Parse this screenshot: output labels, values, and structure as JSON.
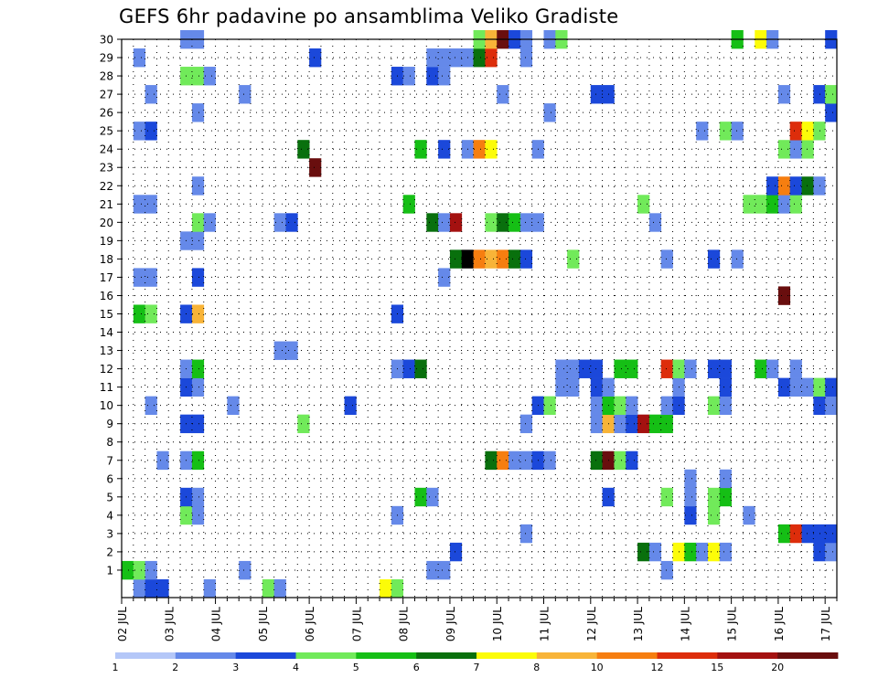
{
  "chart_data": {
    "type": "heatmap",
    "title": "GEFS 6hr padavine po ansamblima Veliko Gradiste",
    "x_tick_labels": [
      "02 JUL",
      "03 JUL",
      "04 JUL",
      "05 JUL",
      "06 JUL",
      "07 JUL",
      "08 JUL",
      "09 JUL",
      "10 JUL",
      "11 JUL",
      "12 JUL",
      "13 JUL",
      "14 JUL",
      "15 JUL",
      "16 JUL",
      "17 JUL"
    ],
    "y_tick_labels": [
      "1",
      "2",
      "3",
      "4",
      "5",
      "6",
      "7",
      "8",
      "9",
      "10",
      "11",
      "12",
      "13",
      "14",
      "15",
      "16",
      "17",
      "18",
      "19",
      "20",
      "21",
      "22",
      "23",
      "24",
      "25",
      "26",
      "27",
      "28",
      "29",
      "30"
    ],
    "ylim": [
      0,
      30
    ],
    "time_steps": 61,
    "grid": true,
    "legend_placement": "bottom",
    "legend": {
      "labels": [
        "1",
        "2",
        "3",
        "4",
        "5",
        "6",
        "7",
        "8",
        "10",
        "12",
        "15",
        "20"
      ],
      "colors": [
        "#b4c7f8",
        "#6589e9",
        "#1b48da",
        "#71ea5a",
        "#15bf15",
        "#09700d",
        "#fcfc08",
        "#f8b438",
        "#f67e10",
        "#dd2d0b",
        "#a41110",
        "#690e0e"
      ]
    },
    "cells": [
      [
        1,
        0,
        1
      ],
      [
        2,
        0,
        2
      ],
      [
        3,
        0,
        2
      ],
      [
        7,
        0,
        1
      ],
      [
        12,
        0,
        3
      ],
      [
        13,
        0,
        1
      ],
      [
        22,
        0,
        6
      ],
      [
        23,
        0,
        3
      ],
      [
        0,
        1,
        4
      ],
      [
        1,
        1,
        3
      ],
      [
        2,
        1,
        1
      ],
      [
        10,
        1,
        1
      ],
      [
        26,
        1,
        1
      ],
      [
        27,
        1,
        1
      ],
      [
        46,
        1,
        1
      ],
      [
        28,
        2,
        2
      ],
      [
        44,
        2,
        5
      ],
      [
        45,
        2,
        1
      ],
      [
        47,
        2,
        6
      ],
      [
        48,
        2,
        4
      ],
      [
        49,
        2,
        1
      ],
      [
        50,
        2,
        6
      ],
      [
        51,
        2,
        1
      ],
      [
        59,
        2,
        2
      ],
      [
        60,
        2,
        1
      ],
      [
        34,
        3,
        1
      ],
      [
        56,
        3,
        4
      ],
      [
        57,
        3,
        9
      ],
      [
        58,
        3,
        2
      ],
      [
        59,
        3,
        2
      ],
      [
        60,
        3,
        2
      ],
      [
        5,
        4,
        3
      ],
      [
        6,
        4,
        1
      ],
      [
        23,
        4,
        1
      ],
      [
        48,
        4,
        2
      ],
      [
        50,
        4,
        3
      ],
      [
        53,
        4,
        1
      ],
      [
        5,
        5,
        2
      ],
      [
        6,
        5,
        1
      ],
      [
        25,
        5,
        4
      ],
      [
        26,
        5,
        1
      ],
      [
        41,
        5,
        2
      ],
      [
        46,
        5,
        3
      ],
      [
        48,
        5,
        1
      ],
      [
        50,
        5,
        3
      ],
      [
        51,
        5,
        4
      ],
      [
        48,
        6,
        1
      ],
      [
        51,
        6,
        1
      ],
      [
        3,
        7,
        1
      ],
      [
        5,
        7,
        1
      ],
      [
        6,
        7,
        4
      ],
      [
        31,
        7,
        5
      ],
      [
        32,
        7,
        8
      ],
      [
        33,
        7,
        1
      ],
      [
        34,
        7,
        1
      ],
      [
        35,
        7,
        2
      ],
      [
        36,
        7,
        1
      ],
      [
        40,
        7,
        5
      ],
      [
        41,
        7,
        11
      ],
      [
        42,
        7,
        3
      ],
      [
        43,
        7,
        2
      ],
      [
        5,
        9,
        2
      ],
      [
        6,
        9,
        2
      ],
      [
        15,
        9,
        3
      ],
      [
        34,
        9,
        1
      ],
      [
        40,
        9,
        1
      ],
      [
        41,
        9,
        7
      ],
      [
        42,
        9,
        1
      ],
      [
        43,
        9,
        2
      ],
      [
        44,
        9,
        10
      ],
      [
        45,
        9,
        4
      ],
      [
        46,
        9,
        4
      ],
      [
        2,
        10,
        1
      ],
      [
        9,
        10,
        1
      ],
      [
        19,
        10,
        2
      ],
      [
        35,
        10,
        2
      ],
      [
        36,
        10,
        3
      ],
      [
        40,
        10,
        1
      ],
      [
        41,
        10,
        4
      ],
      [
        42,
        10,
        3
      ],
      [
        43,
        10,
        1
      ],
      [
        46,
        10,
        1
      ],
      [
        47,
        10,
        2
      ],
      [
        50,
        10,
        3
      ],
      [
        51,
        10,
        1
      ],
      [
        59,
        10,
        2
      ],
      [
        60,
        10,
        1
      ],
      [
        5,
        11,
        2
      ],
      [
        6,
        11,
        1
      ],
      [
        37,
        11,
        1
      ],
      [
        38,
        11,
        1
      ],
      [
        40,
        11,
        2
      ],
      [
        41,
        11,
        1
      ],
      [
        47,
        11,
        1
      ],
      [
        51,
        11,
        2
      ],
      [
        56,
        11,
        2
      ],
      [
        57,
        11,
        1
      ],
      [
        58,
        11,
        1
      ],
      [
        59,
        11,
        3
      ],
      [
        60,
        11,
        2
      ],
      [
        5,
        12,
        1
      ],
      [
        6,
        12,
        4
      ],
      [
        23,
        12,
        1
      ],
      [
        24,
        12,
        2
      ],
      [
        25,
        12,
        5
      ],
      [
        37,
        12,
        1
      ],
      [
        38,
        12,
        1
      ],
      [
        39,
        12,
        2
      ],
      [
        40,
        12,
        2
      ],
      [
        42,
        12,
        4
      ],
      [
        43,
        12,
        4
      ],
      [
        46,
        12,
        9
      ],
      [
        47,
        12,
        3
      ],
      [
        48,
        12,
        1
      ],
      [
        50,
        12,
        2
      ],
      [
        51,
        12,
        2
      ],
      [
        54,
        12,
        4
      ],
      [
        55,
        12,
        1
      ],
      [
        57,
        12,
        1
      ],
      [
        13,
        13,
        1
      ],
      [
        14,
        13,
        1
      ],
      [
        1,
        15,
        4
      ],
      [
        2,
        15,
        3
      ],
      [
        5,
        15,
        2
      ],
      [
        6,
        15,
        7
      ],
      [
        23,
        15,
        2
      ],
      [
        56,
        16,
        11
      ],
      [
        1,
        17,
        1
      ],
      [
        2,
        17,
        1
      ],
      [
        6,
        17,
        2
      ],
      [
        27,
        17,
        1
      ],
      [
        28,
        18,
        5
      ],
      [
        29,
        18,
        12
      ],
      [
        30,
        18,
        8
      ],
      [
        31,
        18,
        7
      ],
      [
        32,
        18,
        8
      ],
      [
        33,
        18,
        5
      ],
      [
        34,
        18,
        2
      ],
      [
        38,
        18,
        3
      ],
      [
        46,
        18,
        1
      ],
      [
        50,
        18,
        2
      ],
      [
        52,
        18,
        1
      ],
      [
        5,
        19,
        1
      ],
      [
        6,
        19,
        1
      ],
      [
        6,
        20,
        3
      ],
      [
        7,
        20,
        1
      ],
      [
        13,
        20,
        1
      ],
      [
        14,
        20,
        2
      ],
      [
        26,
        20,
        5
      ],
      [
        27,
        20,
        1
      ],
      [
        28,
        20,
        10
      ],
      [
        31,
        20,
        3
      ],
      [
        32,
        20,
        5
      ],
      [
        33,
        20,
        4
      ],
      [
        34,
        20,
        1
      ],
      [
        35,
        20,
        1
      ],
      [
        45,
        20,
        1
      ],
      [
        1,
        21,
        1
      ],
      [
        2,
        21,
        1
      ],
      [
        24,
        21,
        4
      ],
      [
        44,
        21,
        3
      ],
      [
        53,
        21,
        3
      ],
      [
        54,
        21,
        3
      ],
      [
        55,
        21,
        4
      ],
      [
        56,
        21,
        1
      ],
      [
        57,
        21,
        3
      ],
      [
        6,
        22,
        1
      ],
      [
        55,
        22,
        2
      ],
      [
        56,
        22,
        8
      ],
      [
        57,
        22,
        2
      ],
      [
        58,
        22,
        5
      ],
      [
        59,
        22,
        1
      ],
      [
        16,
        23,
        11
      ],
      [
        15,
        24,
        5
      ],
      [
        25,
        24,
        4
      ],
      [
        27,
        24,
        2
      ],
      [
        29,
        24,
        1
      ],
      [
        30,
        24,
        8
      ],
      [
        31,
        24,
        6
      ],
      [
        35,
        24,
        1
      ],
      [
        56,
        24,
        3
      ],
      [
        57,
        24,
        1
      ],
      [
        58,
        24,
        3
      ],
      [
        1,
        25,
        1
      ],
      [
        2,
        25,
        2
      ],
      [
        49,
        25,
        1
      ],
      [
        51,
        25,
        3
      ],
      [
        52,
        25,
        1
      ],
      [
        57,
        25,
        9
      ],
      [
        58,
        25,
        6
      ],
      [
        59,
        25,
        3
      ],
      [
        6,
        26,
        1
      ],
      [
        36,
        26,
        1
      ],
      [
        60,
        26,
        2
      ],
      [
        2,
        27,
        1
      ],
      [
        10,
        27,
        1
      ],
      [
        32,
        27,
        1
      ],
      [
        40,
        27,
        2
      ],
      [
        41,
        27,
        2
      ],
      [
        56,
        27,
        1
      ],
      [
        59,
        27,
        2
      ],
      [
        60,
        27,
        3
      ],
      [
        5,
        28,
        3
      ],
      [
        6,
        28,
        3
      ],
      [
        7,
        28,
        1
      ],
      [
        23,
        28,
        2
      ],
      [
        24,
        28,
        1
      ],
      [
        26,
        28,
        2
      ],
      [
        27,
        28,
        1
      ],
      [
        1,
        29,
        1
      ],
      [
        16,
        29,
        2
      ],
      [
        26,
        29,
        1
      ],
      [
        27,
        29,
        1
      ],
      [
        28,
        29,
        1
      ],
      [
        29,
        29,
        1
      ],
      [
        30,
        29,
        5
      ],
      [
        31,
        29,
        9
      ],
      [
        34,
        29,
        1
      ],
      [
        5,
        30,
        1
      ],
      [
        6,
        30,
        1
      ],
      [
        30,
        30,
        3
      ],
      [
        31,
        30,
        7
      ],
      [
        32,
        30,
        11
      ],
      [
        33,
        30,
        2
      ],
      [
        34,
        30,
        1
      ],
      [
        36,
        30,
        1
      ],
      [
        37,
        30,
        3
      ],
      [
        52,
        30,
        4
      ],
      [
        54,
        30,
        6
      ],
      [
        55,
        30,
        1
      ],
      [
        60,
        30,
        2
      ]
    ]
  }
}
